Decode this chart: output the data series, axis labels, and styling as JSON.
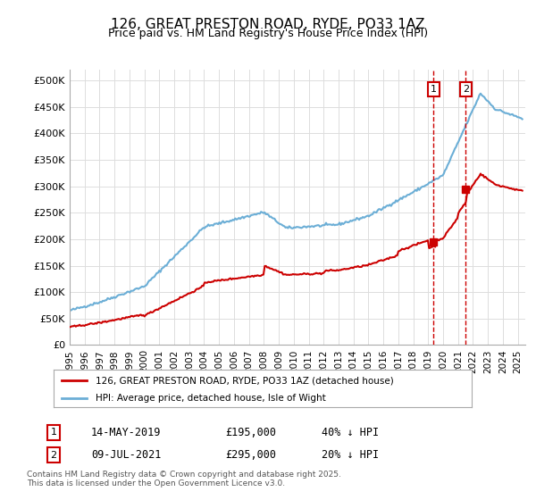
{
  "title": "126, GREAT PRESTON ROAD, RYDE, PO33 1AZ",
  "subtitle": "Price paid vs. HM Land Registry's House Price Index (HPI)",
  "ylabel_ticks": [
    "£0",
    "£50K",
    "£100K",
    "£150K",
    "£200K",
    "£250K",
    "£300K",
    "£350K",
    "£400K",
    "£450K",
    "£500K"
  ],
  "ytick_values": [
    0,
    50000,
    100000,
    150000,
    200000,
    250000,
    300000,
    350000,
    400000,
    450000,
    500000
  ],
  "xlim": [
    1995,
    2025.5
  ],
  "ylim": [
    0,
    520000
  ],
  "hpi_color": "#6baed6",
  "price_color": "#cc0000",
  "transaction1": {
    "date_num": 2019.37,
    "price": 195000,
    "label": "1"
  },
  "transaction2": {
    "date_num": 2021.52,
    "price": 295000,
    "label": "2"
  },
  "legend_line1": "126, GREAT PRESTON ROAD, RYDE, PO33 1AZ (detached house)",
  "legend_line2": "HPI: Average price, detached house, Isle of Wight",
  "table_rows": [
    {
      "num": "1",
      "date": "14-MAY-2019",
      "price": "£195,000",
      "note": "40% ↓ HPI"
    },
    {
      "num": "2",
      "date": "09-JUL-2021",
      "price": "£295,000",
      "note": "20% ↓ HPI"
    }
  ],
  "footer": "Contains HM Land Registry data © Crown copyright and database right 2025.\nThis data is licensed under the Open Government Licence v3.0.",
  "background_color": "#ffffff",
  "grid_color": "#dddddd"
}
